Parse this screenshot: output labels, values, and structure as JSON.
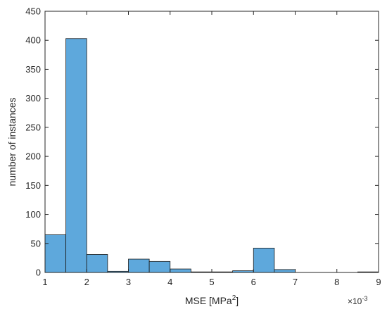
{
  "chart_data": {
    "type": "bar",
    "title": "",
    "xlabel": "MSE [MPa",
    "xlabel_sup": "2",
    "xlabel_suffix": "]",
    "ylabel": "number of instances",
    "x_multiplier_base": "×10",
    "x_multiplier_exp": "-3",
    "xlim": [
      1,
      9
    ],
    "ylim": [
      0,
      450
    ],
    "x_ticks": [
      1,
      2,
      3,
      4,
      5,
      6,
      7,
      8,
      9
    ],
    "y_ticks": [
      0,
      50,
      100,
      150,
      200,
      250,
      300,
      350,
      400,
      450
    ],
    "bin_width": 0.5,
    "bin_starts": [
      1.0,
      1.5,
      2.0,
      2.5,
      3.0,
      3.5,
      4.0,
      4.5,
      5.0,
      5.5,
      6.0,
      6.5,
      7.0,
      7.5,
      8.0,
      8.5
    ],
    "values": [
      65,
      403,
      31,
      2,
      23,
      19,
      6,
      1,
      1,
      3,
      42,
      5,
      0,
      0,
      0,
      1
    ],
    "colors": {
      "bar": "#5ea8dc",
      "edge": "#1a1a1a",
      "axis": "#262626"
    },
    "grid": false,
    "box": true
  }
}
